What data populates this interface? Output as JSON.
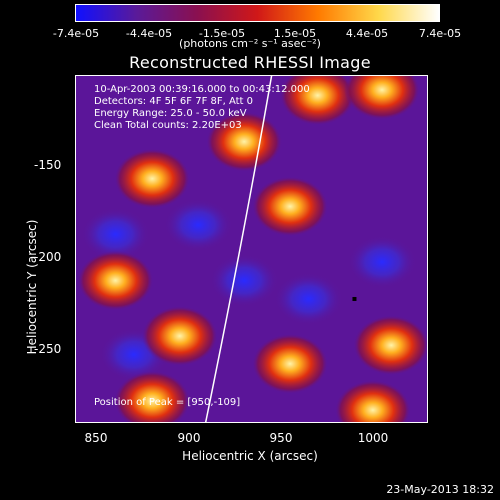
{
  "colorbar": {
    "ticks": [
      "-7.4e-05",
      "-4.4e-05",
      "-1.5e-05",
      "1.5e-05",
      "4.4e-05",
      "7.4e-05"
    ],
    "units": "(photons cm⁻² s⁻¹ asec⁻²)",
    "colors": [
      "#1010ff",
      "#5a1a99",
      "#8a1050",
      "#d01818",
      "#ff7a00",
      "#ffd84a",
      "#ffffff"
    ]
  },
  "title": "Reconstructed RHESSI Image",
  "annotations": {
    "time_range": "10-Apr-2003 00:39:16.000 to 00:43:12.000",
    "detectors": "Detectors: 4F 5F 6F 7F 8F, Att 0",
    "energy_range": "Energy Range: 25.0 - 50.0 keV",
    "clean_counts": "Clean    Total counts: 2.20E+03",
    "peak": "Position of Peak = [950,-109]"
  },
  "axes": {
    "xlabel": "Heliocentric X (arcsec)",
    "ylabel": "Heliocentric Y (arcsec)",
    "xticks": [
      "850",
      "900",
      "950",
      "1000"
    ],
    "yticks": [
      "-150",
      "-200",
      "-250"
    ]
  },
  "date_stamp": "23-May-2013 18:32",
  "chart_data": {
    "type": "heatmap",
    "title": "Reconstructed RHESSI Image",
    "xlabel": "Heliocentric X (arcsec)",
    "ylabel": "Heliocentric Y (arcsec)",
    "xlim": [
      838,
      1030
    ],
    "ylim": [
      -292,
      -104
    ],
    "colorbar_range": [
      -7.4e-05,
      7.4e-05
    ],
    "peak": [
      950,
      -109
    ],
    "limb_arc": [
      [
        945,
        -104
      ],
      [
        930,
        -190
      ],
      [
        909,
        -292
      ]
    ],
    "bright_blobs": [
      [
        970,
        -115
      ],
      [
        1005,
        -112
      ],
      [
        955,
        -175
      ],
      [
        880,
        -160
      ],
      [
        860,
        -215
      ],
      [
        895,
        -245
      ],
      [
        955,
        -260
      ],
      [
        1010,
        -250
      ],
      [
        1000,
        -285
      ],
      [
        880,
        -280
      ],
      [
        930,
        -140
      ]
    ],
    "dark_blobs": [
      [
        860,
        -190
      ],
      [
        905,
        -185
      ],
      [
        965,
        -225
      ],
      [
        870,
        -255
      ],
      [
        1005,
        -205
      ],
      [
        930,
        -215
      ]
    ],
    "min_marker": [
      990,
      -225
    ]
  }
}
